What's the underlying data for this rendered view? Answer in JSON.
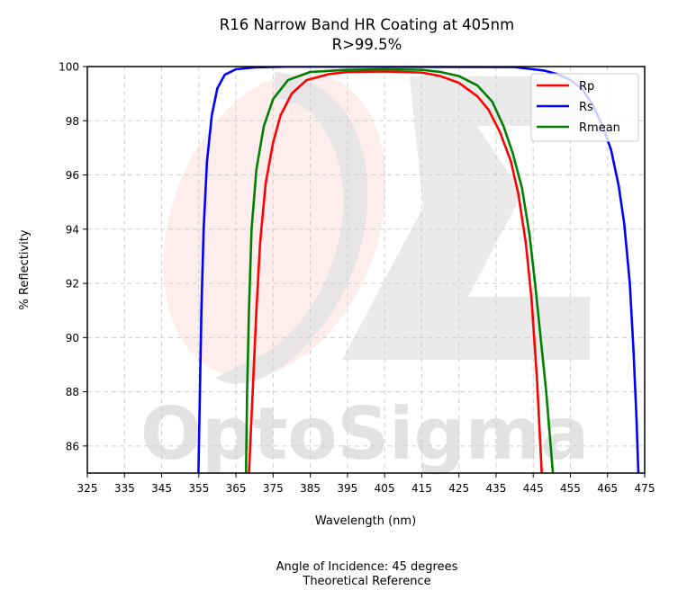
{
  "chart_data": {
    "type": "line",
    "title": "R16 Narrow Band HR Coating at 405nm",
    "subtitle": "R>99.5%",
    "xlabel": "Wavelength (nm)",
    "ylabel": "% Reflectivity",
    "xlim": [
      325,
      475
    ],
    "ylim": [
      85,
      100
    ],
    "xticks": [
      325,
      335,
      345,
      355,
      365,
      375,
      385,
      395,
      405,
      415,
      425,
      435,
      445,
      455,
      465,
      475
    ],
    "yticks": [
      86,
      88,
      90,
      92,
      94,
      96,
      98,
      100
    ],
    "grid": true,
    "legend_position": "top-right",
    "watermark": "OptoSigma",
    "series": [
      {
        "name": "Rp",
        "color": "#ff0000",
        "points": [
          [
            368.5,
            85
          ],
          [
            369.5,
            88
          ],
          [
            370.5,
            91
          ],
          [
            371.5,
            93.5
          ],
          [
            373,
            95.7
          ],
          [
            375,
            97.2
          ],
          [
            377,
            98.2
          ],
          [
            380,
            99.0
          ],
          [
            384,
            99.5
          ],
          [
            390,
            99.72
          ],
          [
            395,
            99.8
          ],
          [
            405,
            99.82
          ],
          [
            415,
            99.78
          ],
          [
            420,
            99.65
          ],
          [
            425,
            99.4
          ],
          [
            430,
            98.9
          ],
          [
            433,
            98.4
          ],
          [
            436,
            97.6
          ],
          [
            439,
            96.5
          ],
          [
            441,
            95.3
          ],
          [
            443,
            93.5
          ],
          [
            444.5,
            91.5
          ],
          [
            446,
            88.5
          ],
          [
            447.3,
            85
          ]
        ]
      },
      {
        "name": "Rs",
        "color": "#0000ff",
        "points": [
          [
            354.9,
            85
          ],
          [
            355.3,
            88
          ],
          [
            355.7,
            91
          ],
          [
            356.3,
            94
          ],
          [
            357.2,
            96.5
          ],
          [
            358.5,
            98.2
          ],
          [
            360,
            99.2
          ],
          [
            362,
            99.7
          ],
          [
            365,
            99.9
          ],
          [
            370,
            99.97
          ],
          [
            380,
            100
          ],
          [
            440,
            99.98
          ],
          [
            448,
            99.85
          ],
          [
            452,
            99.7
          ],
          [
            455,
            99.5
          ],
          [
            458,
            99.2
          ],
          [
            461,
            98.6
          ],
          [
            464,
            97.7
          ],
          [
            466,
            96.9
          ],
          [
            468,
            95.6
          ],
          [
            469.5,
            94.2
          ],
          [
            471,
            92.0
          ],
          [
            472,
            89.5
          ],
          [
            472.8,
            87
          ],
          [
            473.3,
            85
          ]
        ]
      },
      {
        "name": "Rmean",
        "color": "#008000",
        "points": [
          [
            367.7,
            85
          ],
          [
            368,
            88
          ],
          [
            368.5,
            91
          ],
          [
            369.2,
            94
          ],
          [
            370.5,
            96.2
          ],
          [
            372.5,
            97.8
          ],
          [
            375,
            98.8
          ],
          [
            379,
            99.5
          ],
          [
            385,
            99.8
          ],
          [
            395,
            99.88
          ],
          [
            405,
            99.9
          ],
          [
            415,
            99.88
          ],
          [
            420,
            99.8
          ],
          [
            425,
            99.65
          ],
          [
            430,
            99.3
          ],
          [
            434,
            98.7
          ],
          [
            437,
            97.8
          ],
          [
            439.5,
            96.8
          ],
          [
            442,
            95.5
          ],
          [
            444,
            93.8
          ],
          [
            445.5,
            92.0
          ],
          [
            447,
            90.0
          ],
          [
            448.5,
            88
          ],
          [
            450.3,
            85
          ]
        ]
      }
    ]
  },
  "footer": {
    "line1": "Angle of Incidence: 45 degrees",
    "line2": "Theoretical Reference"
  }
}
